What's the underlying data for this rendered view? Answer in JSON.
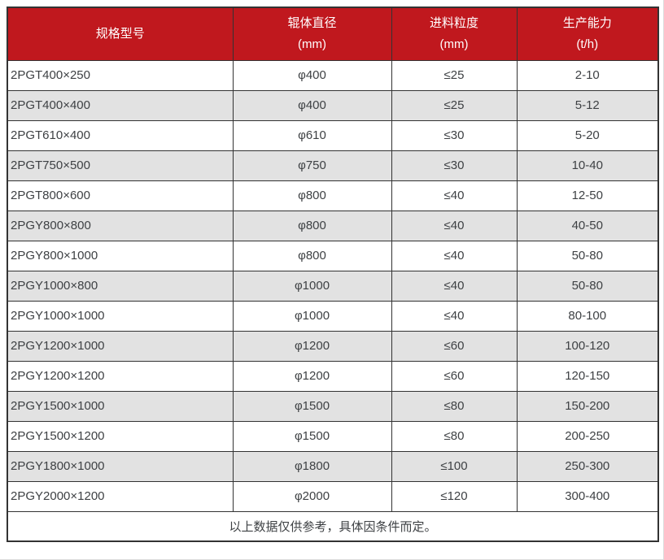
{
  "colors": {
    "header_bg": "#c0181e",
    "header_text": "#ffffff",
    "row_bg": "#ffffff",
    "row_alt_bg": "#e2e2e2",
    "border": "#333333",
    "body_text": "#3e4144"
  },
  "table": {
    "columns": [
      {
        "label": "规格型号",
        "unit": ""
      },
      {
        "label": "辊体直径",
        "unit": "(mm)"
      },
      {
        "label": "进料粒度",
        "unit": "(mm)"
      },
      {
        "label": "生产能力",
        "unit": "(t/h)"
      }
    ],
    "rows": [
      [
        "2PGT400×250",
        "φ400",
        "≤25",
        "2-10"
      ],
      [
        "2PGT400×400",
        "φ400",
        "≤25",
        "5-12"
      ],
      [
        "2PGT610×400",
        "φ610",
        "≤30",
        "5-20"
      ],
      [
        "2PGT750×500",
        "φ750",
        "≤30",
        "10-40"
      ],
      [
        "2PGT800×600",
        "φ800",
        "≤40",
        "12-50"
      ],
      [
        "2PGY800×800",
        "φ800",
        "≤40",
        "40-50"
      ],
      [
        "2PGY800×1000",
        "φ800",
        "≤40",
        "50-80"
      ],
      [
        "2PGY1000×800",
        "φ1000",
        "≤40",
        "50-80"
      ],
      [
        "2PGY1000×1000",
        "φ1000",
        "≤40",
        "80-100"
      ],
      [
        "2PGY1200×1000",
        "φ1200",
        "≤60",
        "100-120"
      ],
      [
        "2PGY1200×1200",
        "φ1200",
        "≤60",
        "120-150"
      ],
      [
        "2PGY1500×1000",
        "φ1500",
        "≤80",
        "150-200"
      ],
      [
        "2PGY1500×1200",
        "φ1500",
        "≤80",
        "200-250"
      ],
      [
        "2PGY1800×1000",
        "φ1800",
        "≤100",
        "250-300"
      ],
      [
        "2PGY2000×1200",
        "φ2000",
        "≤120",
        "300-400"
      ]
    ],
    "footnote": "以上数据仅供参考，具体因条件而定。"
  }
}
